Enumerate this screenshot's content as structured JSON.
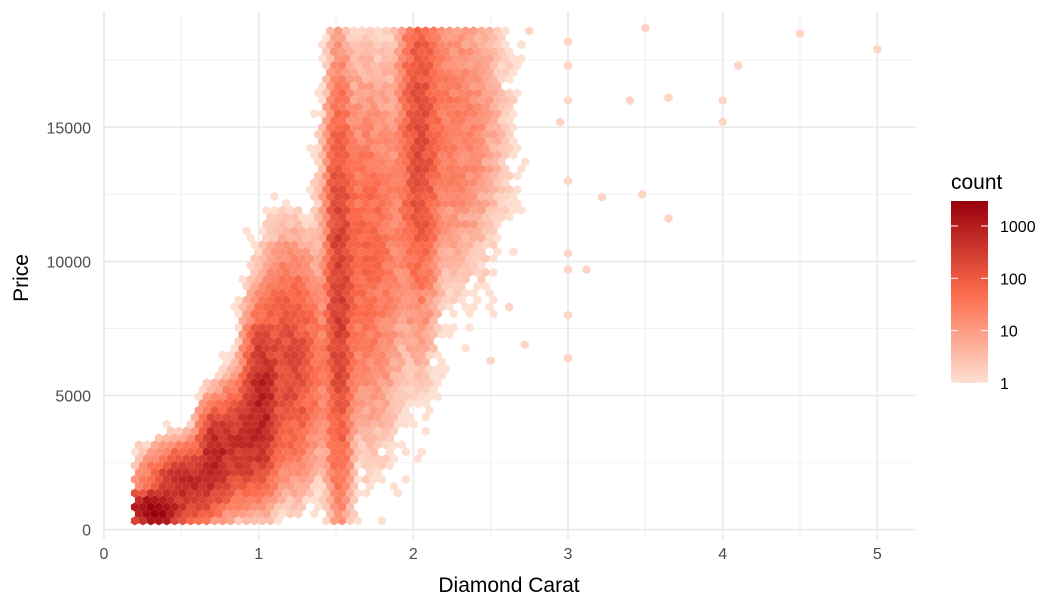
{
  "chart_data": {
    "type": "hexbin",
    "xlabel": "Diamond Carat",
    "ylabel": "Price",
    "xlim": [
      0,
      5.25
    ],
    "ylim": [
      -350,
      19300
    ],
    "x_ticks": [
      0,
      1,
      2,
      3,
      4,
      5
    ],
    "x_tick_labels": [
      "0",
      "1",
      "2",
      "3",
      "4",
      "5"
    ],
    "y_ticks": [
      0,
      5000,
      10000,
      15000
    ],
    "y_tick_labels": [
      "0",
      "5000",
      "10000",
      "15000"
    ],
    "grid": true,
    "colorscale": {
      "title": "count",
      "scale": "log10",
      "range": [
        1,
        3000
      ],
      "low_color": "#fee0d2",
      "mid_color": "#fb6a4a",
      "high_color": "#99000d",
      "ticks": [
        1,
        10,
        100,
        1000
      ],
      "tick_labels": [
        "1",
        "10",
        "100",
        "1000"
      ]
    },
    "legend_position": "right",
    "density_clusters": [
      {
        "x": 0.32,
        "y": 700,
        "sx": 0.08,
        "sy": 300,
        "peak": 3000
      },
      {
        "x": 0.55,
        "y": 1700,
        "sx": 0.12,
        "sy": 600,
        "peak": 600
      },
      {
        "x": 0.72,
        "y": 2900,
        "sx": 0.05,
        "sy": 700,
        "peak": 900
      },
      {
        "x": 0.9,
        "y": 3300,
        "sx": 0.08,
        "sy": 900,
        "peak": 500
      },
      {
        "x": 1.02,
        "y": 4800,
        "sx": 0.05,
        "sy": 1300,
        "peak": 900
      },
      {
        "x": 1.2,
        "y": 6200,
        "sx": 0.1,
        "sy": 1800,
        "peak": 200
      },
      {
        "x": 1.52,
        "y": 9000,
        "sx": 0.04,
        "sy": 3500,
        "peak": 300
      },
      {
        "x": 1.7,
        "y": 10500,
        "sx": 0.12,
        "sy": 3000,
        "peak": 60
      },
      {
        "x": 2.04,
        "y": 14500,
        "sx": 0.06,
        "sy": 3000,
        "peak": 180
      },
      {
        "x": 2.25,
        "y": 15000,
        "sx": 0.15,
        "sy": 2500,
        "peak": 30
      }
    ]
  }
}
